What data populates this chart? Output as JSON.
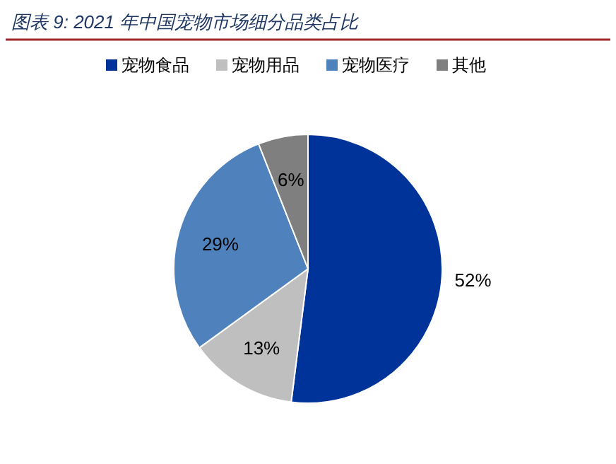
{
  "chart_data": {
    "type": "pie",
    "title": "图表 9:  2021 年中国宠物市场细分品类占比",
    "categories": [
      "宠物食品",
      "宠物用品",
      "宠物医疗",
      "其他"
    ],
    "values": [
      52,
      13,
      29,
      6
    ],
    "colors": [
      "#003399",
      "#bfbfbf",
      "#4f81bd",
      "#7f7f7f"
    ],
    "value_labels": [
      "52%",
      "13%",
      "29%",
      "6%"
    ],
    "legend": "top"
  }
}
